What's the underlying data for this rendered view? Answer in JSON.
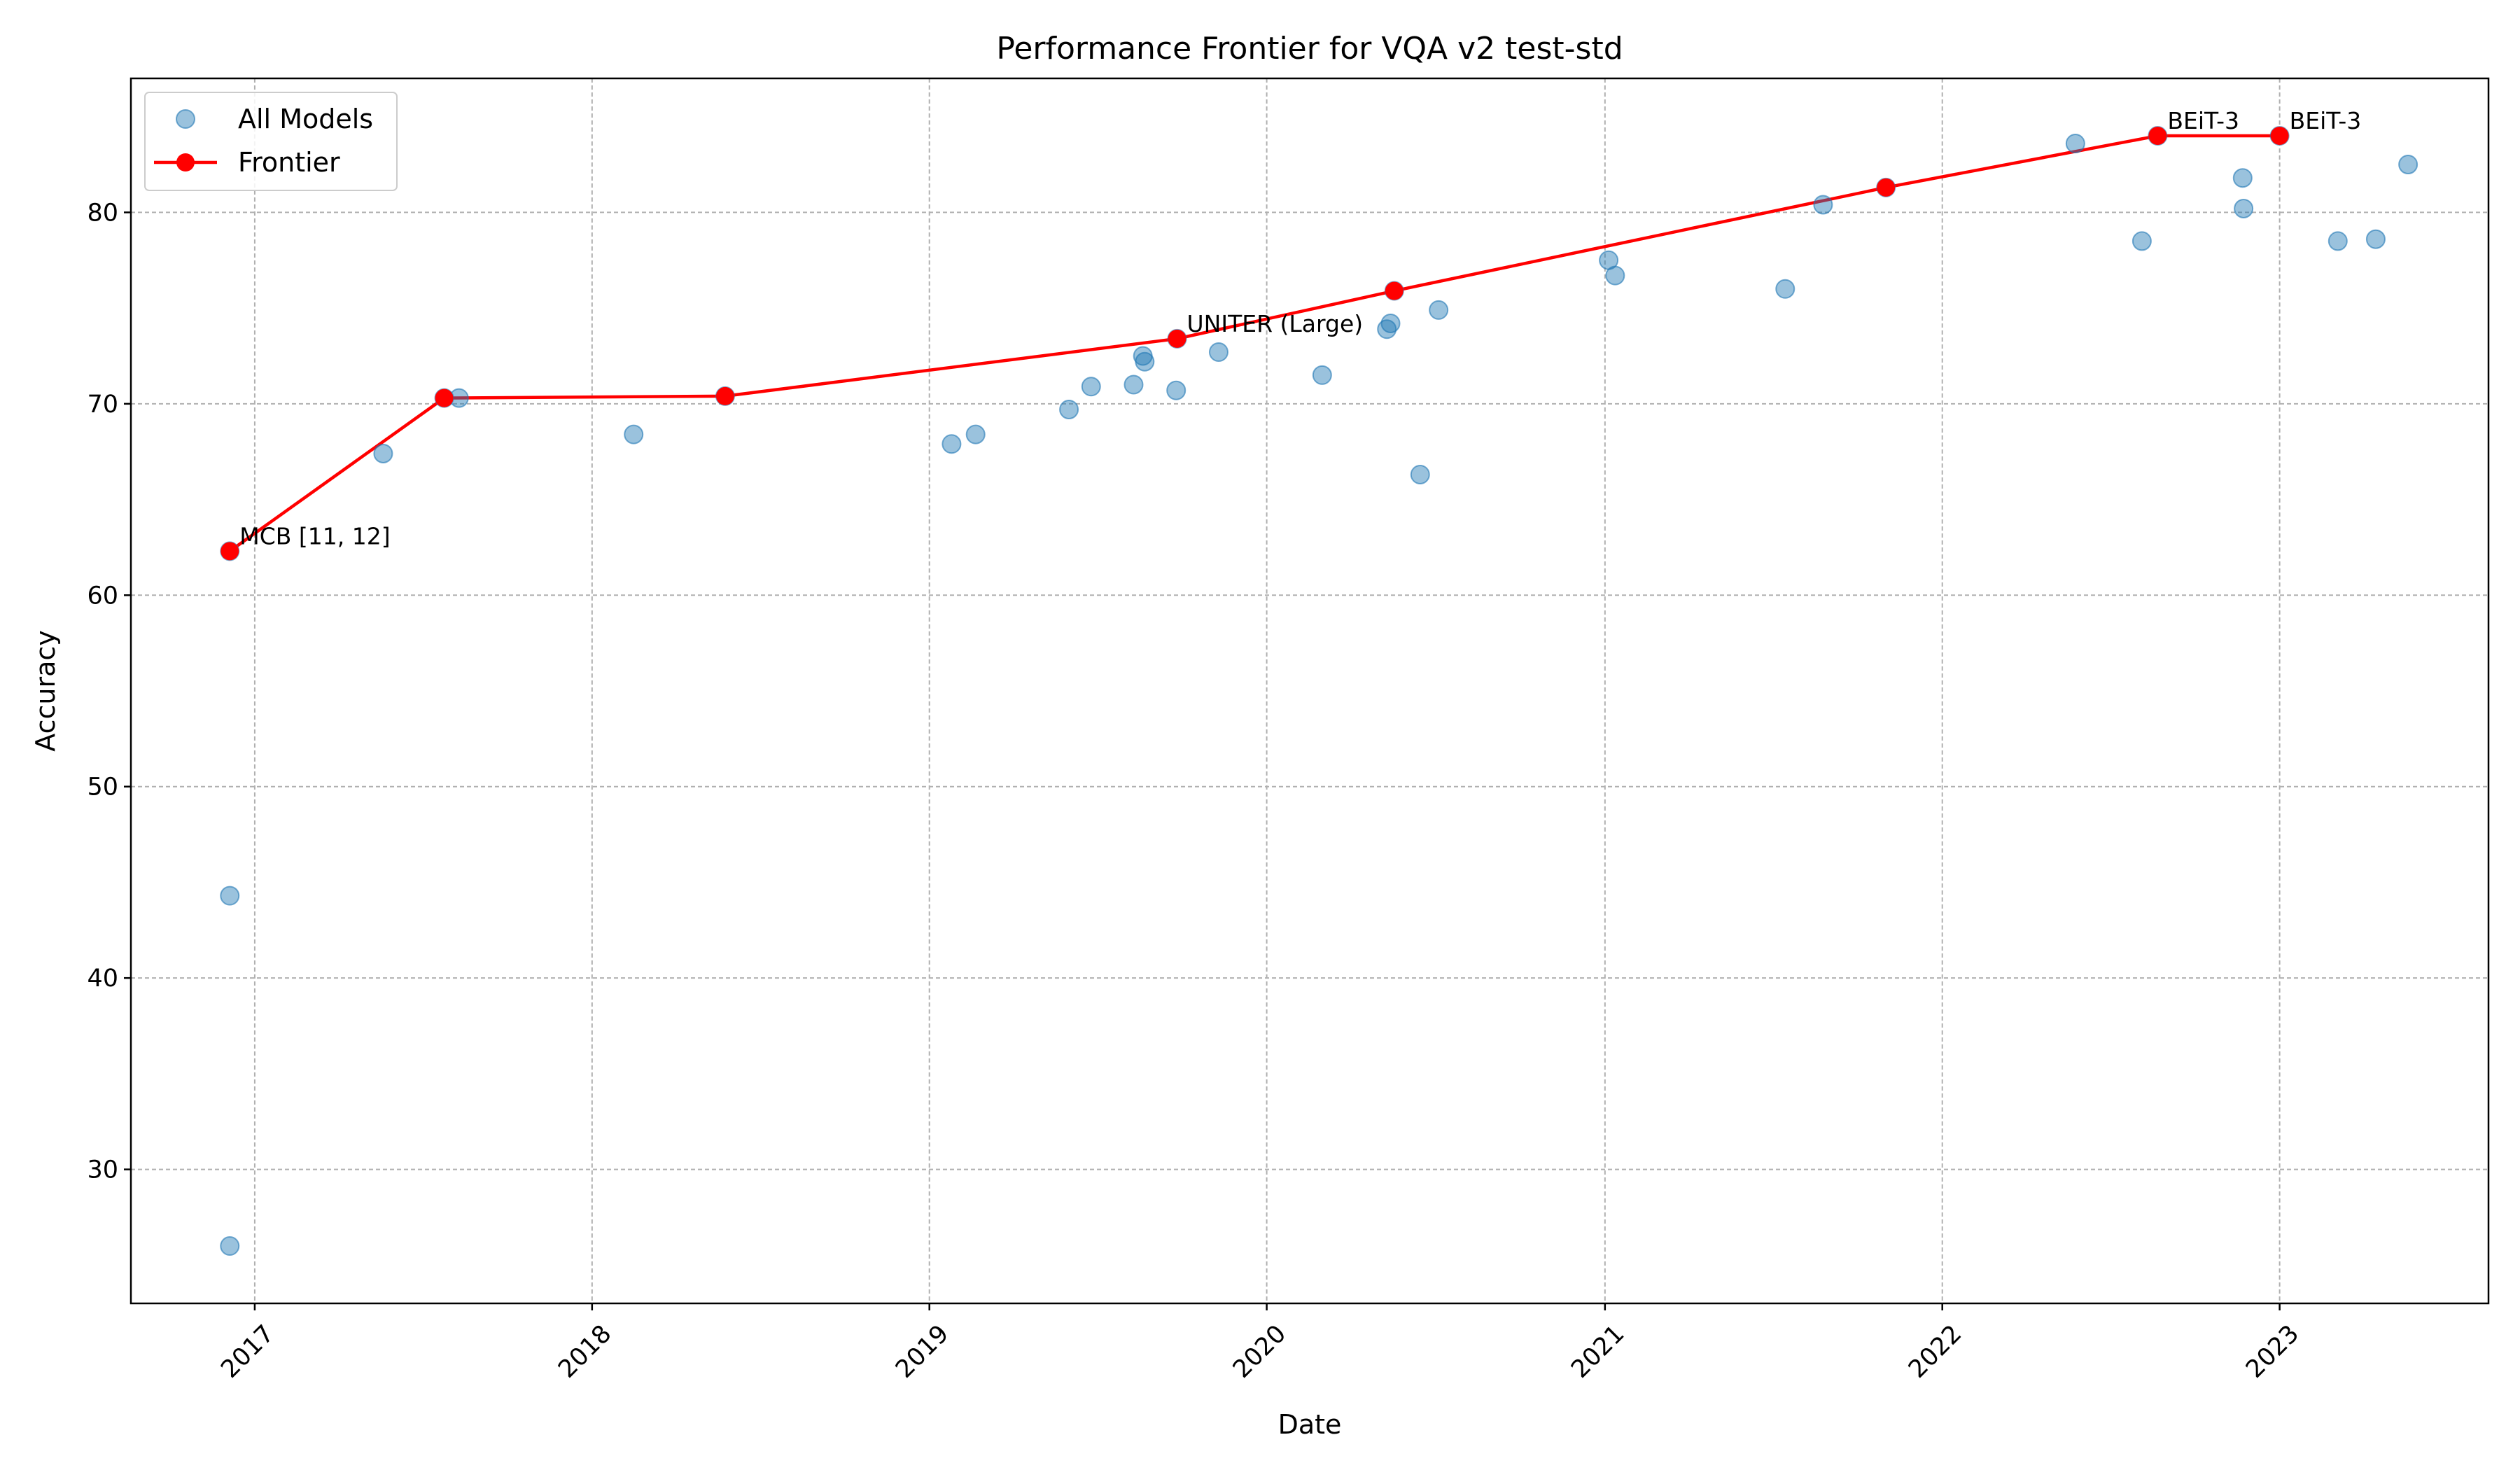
{
  "chart_data": {
    "type": "scatter",
    "title": "Performance Frontier for VQA v2 test-std",
    "xlabel": "Date",
    "ylabel": "Accuracy",
    "x_type": "date",
    "xlim": [
      "2016-08-20",
      "2023-08-15"
    ],
    "ylim": [
      23,
      87
    ],
    "x_ticks": [
      "2017",
      "2018",
      "2019",
      "2020",
      "2021",
      "2022",
      "2023"
    ],
    "x_tick_dates": [
      "2017-01-01",
      "2018-01-01",
      "2019-01-01",
      "2020-01-01",
      "2021-01-01",
      "2022-01-01",
      "2023-01-01"
    ],
    "y_ticks": [
      30,
      40,
      50,
      60,
      70,
      80
    ],
    "grid": true,
    "legend_position": "top-left",
    "series": [
      {
        "name": "All Models",
        "kind": "scatter",
        "color": "#1f77b4",
        "points": [
          {
            "x": "2016-12-05",
            "y": 62.3
          },
          {
            "x": "2016-12-05",
            "y": 44.3
          },
          {
            "x": "2016-12-05",
            "y": 26.0
          },
          {
            "x": "2017-05-20",
            "y": 67.4
          },
          {
            "x": "2017-07-25",
            "y": 70.3
          },
          {
            "x": "2017-08-10",
            "y": 70.3
          },
          {
            "x": "2018-02-15",
            "y": 68.4
          },
          {
            "x": "2018-05-25",
            "y": 70.4
          },
          {
            "x": "2019-01-25",
            "y": 67.9
          },
          {
            "x": "2019-02-20",
            "y": 68.4
          },
          {
            "x": "2019-06-01",
            "y": 69.7
          },
          {
            "x": "2019-06-25",
            "y": 70.9
          },
          {
            "x": "2019-08-10",
            "y": 71.0
          },
          {
            "x": "2019-08-20",
            "y": 72.5
          },
          {
            "x": "2019-08-22",
            "y": 72.2
          },
          {
            "x": "2019-09-25",
            "y": 70.7
          },
          {
            "x": "2019-09-26",
            "y": 73.4
          },
          {
            "x": "2019-11-10",
            "y": 72.7
          },
          {
            "x": "2020-03-01",
            "y": 71.5
          },
          {
            "x": "2020-05-10",
            "y": 73.9
          },
          {
            "x": "2020-05-14",
            "y": 74.2
          },
          {
            "x": "2020-05-18",
            "y": 75.9
          },
          {
            "x": "2020-06-15",
            "y": 66.3
          },
          {
            "x": "2020-07-05",
            "y": 74.9
          },
          {
            "x": "2021-01-05",
            "y": 77.5
          },
          {
            "x": "2021-01-12",
            "y": 76.7
          },
          {
            "x": "2021-07-15",
            "y": 76.0
          },
          {
            "x": "2021-08-25",
            "y": 80.4
          },
          {
            "x": "2021-11-01",
            "y": 81.3
          },
          {
            "x": "2022-05-25",
            "y": 83.6
          },
          {
            "x": "2022-08-05",
            "y": 78.5
          },
          {
            "x": "2022-08-22",
            "y": 84.0
          },
          {
            "x": "2022-11-22",
            "y": 81.8
          },
          {
            "x": "2022-11-23",
            "y": 80.2
          },
          {
            "x": "2023-01-01",
            "y": 84.0
          },
          {
            "x": "2023-03-05",
            "y": 78.5
          },
          {
            "x": "2023-04-15",
            "y": 78.6
          },
          {
            "x": "2023-05-20",
            "y": 82.5
          }
        ]
      },
      {
        "name": "Frontier",
        "kind": "line",
        "color": "#ff0000",
        "points": [
          {
            "x": "2016-12-05",
            "y": 62.3,
            "label": "MCB [11, 12]"
          },
          {
            "x": "2017-07-25",
            "y": 70.3
          },
          {
            "x": "2018-05-25",
            "y": 70.4
          },
          {
            "x": "2019-09-26",
            "y": 73.4,
            "label": "UNITER (Large)"
          },
          {
            "x": "2020-05-18",
            "y": 75.9
          },
          {
            "x": "2021-11-01",
            "y": 81.3
          },
          {
            "x": "2022-08-22",
            "y": 84.0,
            "label": "BEiT-3"
          },
          {
            "x": "2023-01-01",
            "y": 84.0,
            "label": "BEiT-3"
          }
        ]
      }
    ]
  }
}
